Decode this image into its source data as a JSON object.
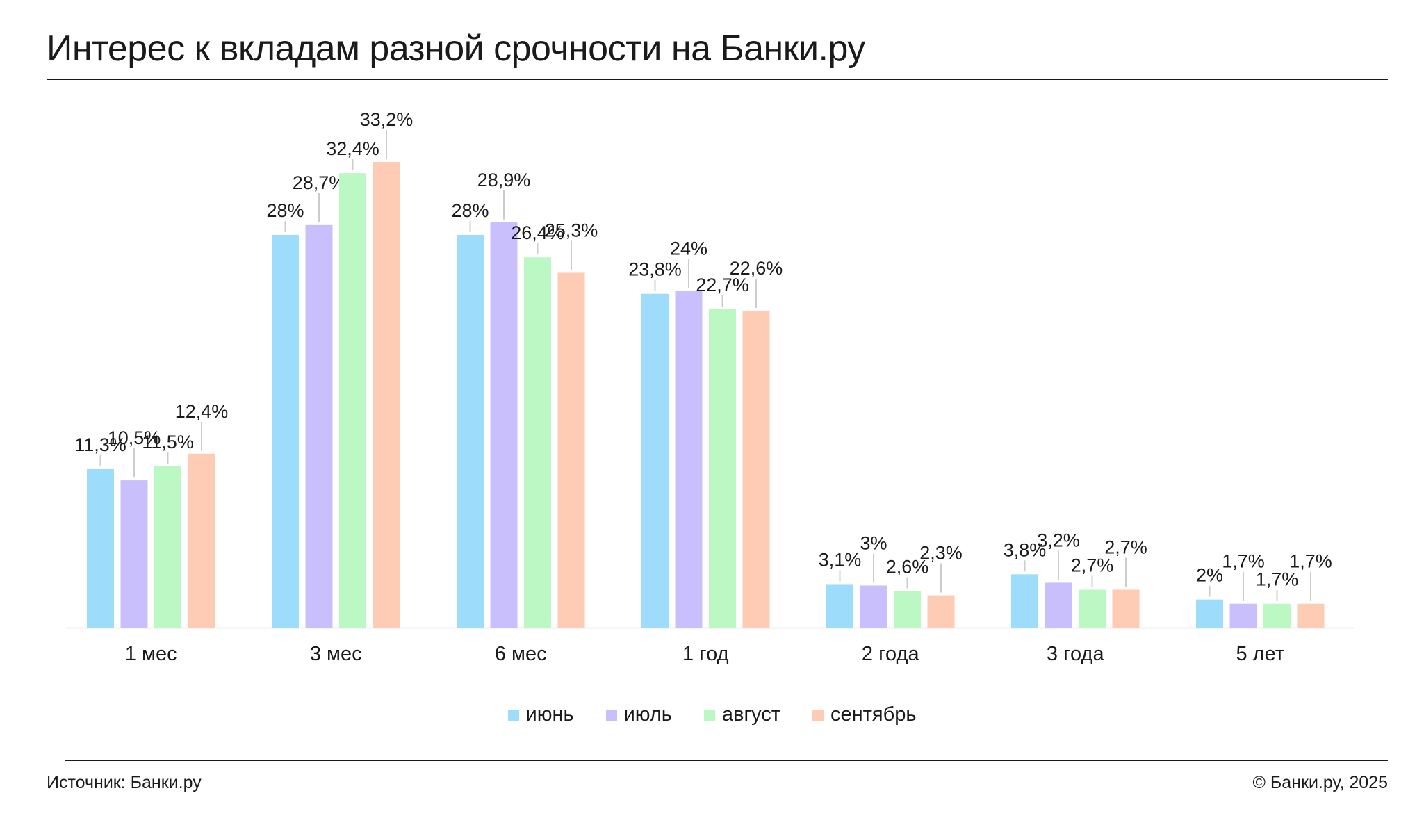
{
  "title": "Интерес к вкладам разной срочности на Банки.ру",
  "footer": {
    "source": "Источник: Банки.ру",
    "copyright": "© Банки.ру, 2025"
  },
  "chart_data": {
    "type": "bar",
    "title": "Интерес к вкладам разной срочности на Банки.ру",
    "xlabel": "",
    "ylabel": "",
    "unit": "%",
    "ylim": [
      0,
      33.2
    ],
    "grid": false,
    "legend_position": "bottom-center",
    "categories": [
      "1 мес",
      "3 мес",
      "6 мес",
      "1 год",
      "2 года",
      "3 года",
      "5 лет"
    ],
    "series": [
      {
        "name": "июнь",
        "color": "#9ddcfb",
        "values": [
          11.3,
          28,
          28,
          23.8,
          3.1,
          3.8,
          2
        ],
        "labels": [
          "11,3%",
          "28%",
          "28%",
          "23,8%",
          "3,1%",
          "3,8%",
          "2%"
        ]
      },
      {
        "name": "июль",
        "color": "#c9bffd",
        "values": [
          10.5,
          28.7,
          28.9,
          24,
          3,
          3.2,
          1.7
        ],
        "labels": [
          "10,5%",
          "28,7%",
          "28,9%",
          "24%",
          "3%",
          "3,2%",
          "1,7%"
        ]
      },
      {
        "name": "август",
        "color": "#bbf8c3",
        "values": [
          11.5,
          32.4,
          26.4,
          22.7,
          2.6,
          2.7,
          1.7
        ],
        "labels": [
          "11,5%",
          "32,4%",
          "26,4%",
          "22,7%",
          "2,6%",
          "2,7%",
          "1,7%"
        ]
      },
      {
        "name": "сентябрь",
        "color": "#fecbb5",
        "values": [
          12.4,
          33.2,
          25.3,
          22.6,
          2.3,
          2.7,
          1.7
        ],
        "labels": [
          "12,4%",
          "33,2%",
          "25,3%",
          "22,6%",
          "2,3%",
          "2,7%",
          "1,7%"
        ]
      }
    ]
  }
}
